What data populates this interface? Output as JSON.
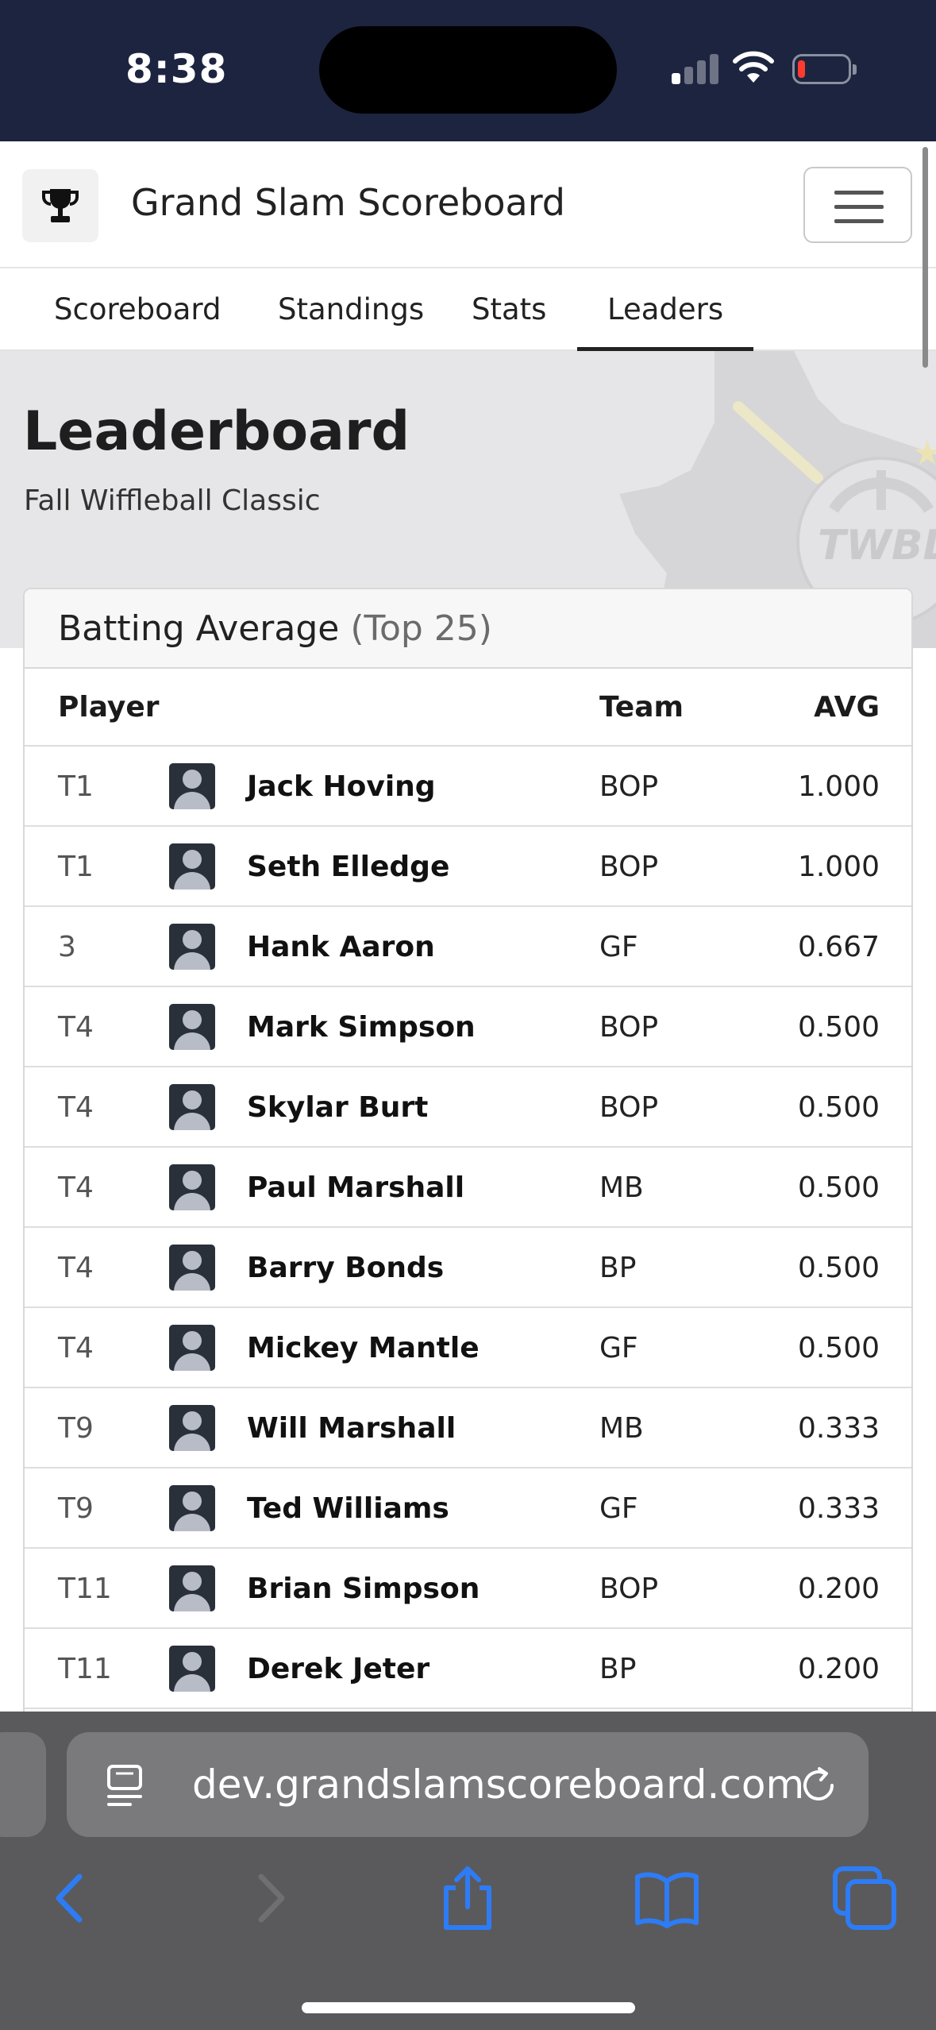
{
  "status_bar": {
    "time": "8:38",
    "icons": [
      "signal-icon",
      "wifi-icon",
      "battery-icon"
    ]
  },
  "app_header": {
    "title": "Grand Slam Scoreboard",
    "logo_icon": "trophy-icon",
    "menu_icon": "hamburger-icon"
  },
  "tabs": [
    {
      "label": "Scoreboard",
      "active": false
    },
    {
      "label": "Standings",
      "active": false
    },
    {
      "label": "Stats",
      "active": false
    },
    {
      "label": "Leaders",
      "active": true
    }
  ],
  "hero": {
    "title": "Leaderboard",
    "subtitle": "Fall Wiffleball Classic",
    "emblem_text": "TWBL"
  },
  "leaderboard": {
    "title": "Batting Average",
    "title_suffix": "(Top 25)",
    "columns": {
      "player": "Player",
      "team": "Team",
      "avg": "AVG"
    },
    "rows": [
      {
        "rank": "T1",
        "name": "Jack Hoving",
        "team": "BOP",
        "avg": "1.000"
      },
      {
        "rank": "T1",
        "name": "Seth Elledge",
        "team": "BOP",
        "avg": "1.000"
      },
      {
        "rank": "3",
        "name": "Hank Aaron",
        "team": "GF",
        "avg": "0.667"
      },
      {
        "rank": "T4",
        "name": "Mark Simpson",
        "team": "BOP",
        "avg": "0.500"
      },
      {
        "rank": "T4",
        "name": "Skylar Burt",
        "team": "BOP",
        "avg": "0.500"
      },
      {
        "rank": "T4",
        "name": "Paul Marshall",
        "team": "MB",
        "avg": "0.500"
      },
      {
        "rank": "T4",
        "name": "Barry Bonds",
        "team": "BP",
        "avg": "0.500"
      },
      {
        "rank": "T4",
        "name": "Mickey Mantle",
        "team": "GF",
        "avg": "0.500"
      },
      {
        "rank": "T9",
        "name": "Will Marshall",
        "team": "MB",
        "avg": "0.333"
      },
      {
        "rank": "T9",
        "name": "Ted Williams",
        "team": "GF",
        "avg": "0.333"
      },
      {
        "rank": "T11",
        "name": "Brian Simpson",
        "team": "BOP",
        "avg": "0.200"
      },
      {
        "rank": "T11",
        "name": "Derek Jeter",
        "team": "BP",
        "avg": "0.200"
      }
    ]
  },
  "browser": {
    "url": "dev.grandslamscoreboard.com",
    "icons": [
      "page-menu-icon",
      "reload-icon",
      "back-icon",
      "forward-icon",
      "share-icon",
      "bookmarks-icon",
      "tabs-icon"
    ]
  },
  "colors": {
    "status_bar_bg": "#1d2440",
    "hero_bg": "#e6e6e8",
    "safari_toolbar_bg": "#5a5a5c",
    "ios_blue": "#2d7cf6"
  }
}
